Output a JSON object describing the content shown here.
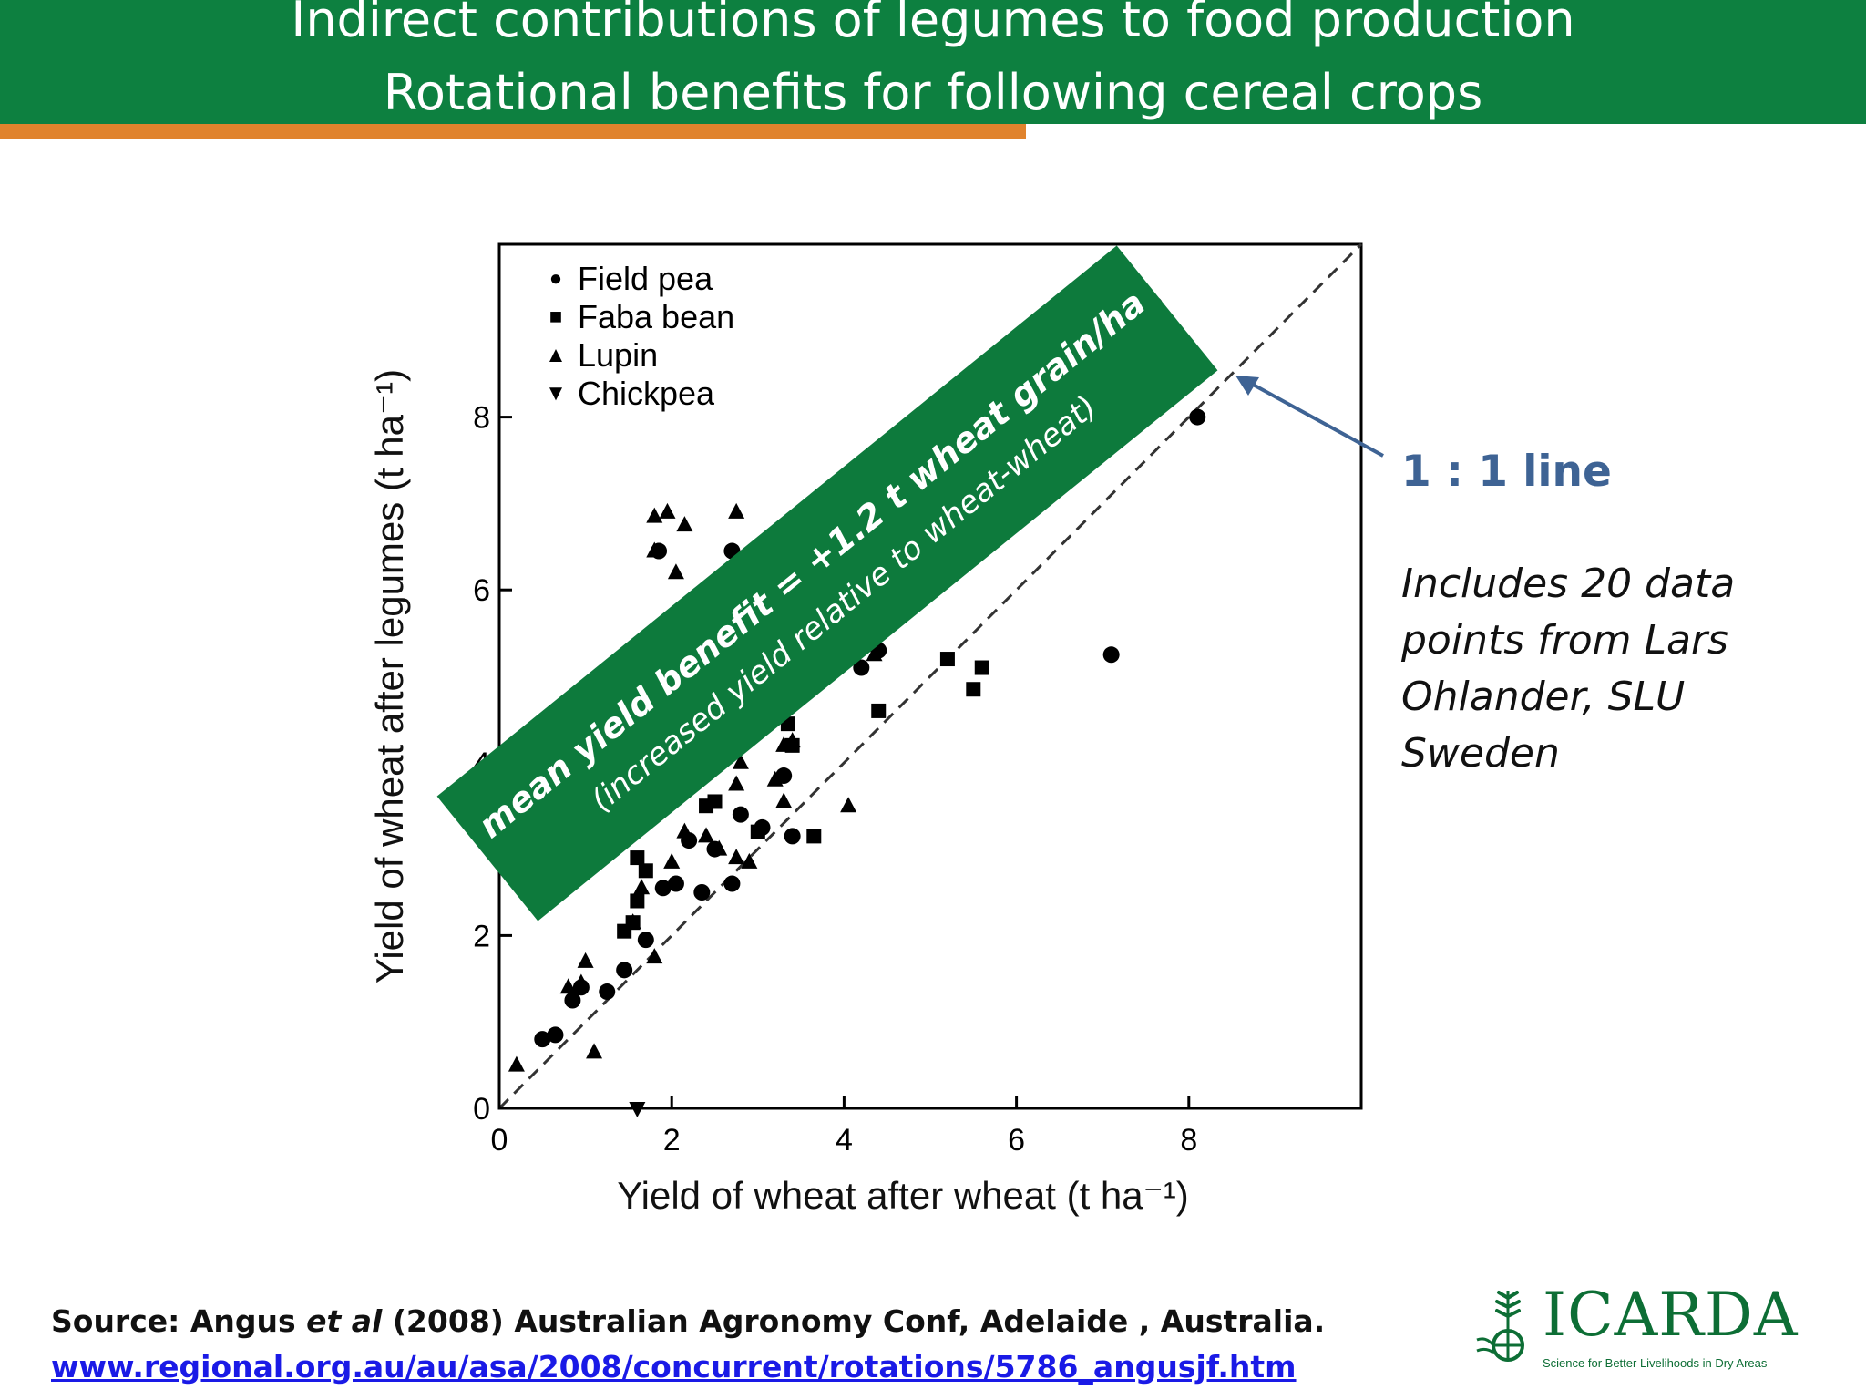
{
  "header": {
    "title_line1": "Indirect contributions of legumes to food production",
    "title_line2": "Rotational benefits for following cereal crops",
    "band_color": "#0d8040",
    "accent_color": "#e0832d"
  },
  "chart_data": {
    "type": "scatter",
    "xlabel": "Yield of wheat after wheat (t ha⁻¹)",
    "ylabel": "Yield of wheat after legumes (t ha⁻¹)",
    "xlim": [
      0,
      10
    ],
    "ylim": [
      0,
      10
    ],
    "xticks": [
      0,
      2,
      4,
      6,
      8
    ],
    "yticks": [
      0,
      2,
      4,
      6,
      8
    ],
    "grid": false,
    "legend_position": "top-left",
    "reference_line": {
      "type": "1:1",
      "style": "dashed"
    },
    "series": [
      {
        "name": "Field pea",
        "marker": "circle",
        "points": [
          [
            0.5,
            0.8
          ],
          [
            0.65,
            0.85
          ],
          [
            0.85,
            1.25
          ],
          [
            0.95,
            1.4
          ],
          [
            1.25,
            1.35
          ],
          [
            1.45,
            1.6
          ],
          [
            1.7,
            1.95
          ],
          [
            1.9,
            2.55
          ],
          [
            2.05,
            2.6
          ],
          [
            2.35,
            2.5
          ],
          [
            2.7,
            2.6
          ],
          [
            2.2,
            3.1
          ],
          [
            2.5,
            3.0
          ],
          [
            2.8,
            3.4
          ],
          [
            3.05,
            3.25
          ],
          [
            3.4,
            3.15
          ],
          [
            3.3,
            3.85
          ],
          [
            1.85,
            6.45
          ],
          [
            2.7,
            6.45
          ],
          [
            2.0,
            5.4
          ],
          [
            4.2,
            5.1
          ],
          [
            4.4,
            5.3
          ],
          [
            6.7,
            7.8
          ],
          [
            6.85,
            8.05
          ],
          [
            8.1,
            8.0
          ],
          [
            7.6,
            9.3
          ],
          [
            7.1,
            5.25
          ]
        ]
      },
      {
        "name": "Faba bean",
        "marker": "square",
        "points": [
          [
            1.6,
            2.9
          ],
          [
            1.7,
            2.75
          ],
          [
            1.6,
            2.4
          ],
          [
            1.55,
            2.15
          ],
          [
            1.45,
            2.05
          ],
          [
            2.4,
            3.5
          ],
          [
            2.5,
            3.55
          ],
          [
            3.0,
            3.2
          ],
          [
            3.35,
            4.45
          ],
          [
            3.4,
            4.2
          ],
          [
            3.65,
            3.15
          ],
          [
            4.4,
            4.6
          ],
          [
            5.2,
            5.2
          ],
          [
            5.5,
            4.85
          ],
          [
            5.6,
            5.1
          ]
        ]
      },
      {
        "name": "Lupin",
        "marker": "triangle-up",
        "points": [
          [
            0.2,
            0.5
          ],
          [
            1.1,
            0.65
          ],
          [
            0.8,
            1.4
          ],
          [
            0.95,
            1.45
          ],
          [
            1.0,
            1.7
          ],
          [
            1.55,
            2.15
          ],
          [
            1.8,
            1.75
          ],
          [
            1.65,
            2.55
          ],
          [
            2.0,
            2.85
          ],
          [
            2.15,
            3.2
          ],
          [
            2.4,
            3.15
          ],
          [
            2.55,
            3.0
          ],
          [
            2.75,
            2.9
          ],
          [
            2.9,
            2.85
          ],
          [
            2.75,
            3.75
          ],
          [
            2.8,
            4.0
          ],
          [
            3.2,
            3.8
          ],
          [
            3.3,
            3.55
          ],
          [
            3.3,
            4.2
          ],
          [
            3.4,
            4.25
          ],
          [
            4.05,
            3.5
          ],
          [
            1.8,
            6.85
          ],
          [
            1.95,
            6.9
          ],
          [
            2.15,
            6.75
          ],
          [
            2.75,
            6.9
          ],
          [
            1.8,
            6.45
          ],
          [
            2.05,
            6.2
          ],
          [
            4.35,
            5.25
          ]
        ]
      },
      {
        "name": "Chickpea",
        "marker": "triangle-down",
        "points": [
          [
            1.6,
            0.0
          ]
        ]
      }
    ]
  },
  "overlay": {
    "line1": "mean yield benefit = +1.2 t wheat grain/ha",
    "line2": "(increased yield relative to wheat-wheat)",
    "color": "#0d7a3c"
  },
  "annotations": {
    "one_to_one_label": "1 : 1 line",
    "one_to_one_color": "#3e6394",
    "includes_text": "Includes 20 data points from Lars Ohlander, SLU Sweden"
  },
  "footer": {
    "source_prefix": "Source: Angus ",
    "source_italic": "et al",
    "source_suffix": " (2008) Australian Agronomy Conf, Adelaide , Australia.",
    "source_link": "www.regional.org.au/au/asa/2008/concurrent/rotations/5786_angusjf.htm"
  },
  "logo": {
    "text": "ICARDA",
    "tagline": "Science for Better Livelihoods in Dry Areas",
    "icon": "wheat-globe-icon"
  }
}
